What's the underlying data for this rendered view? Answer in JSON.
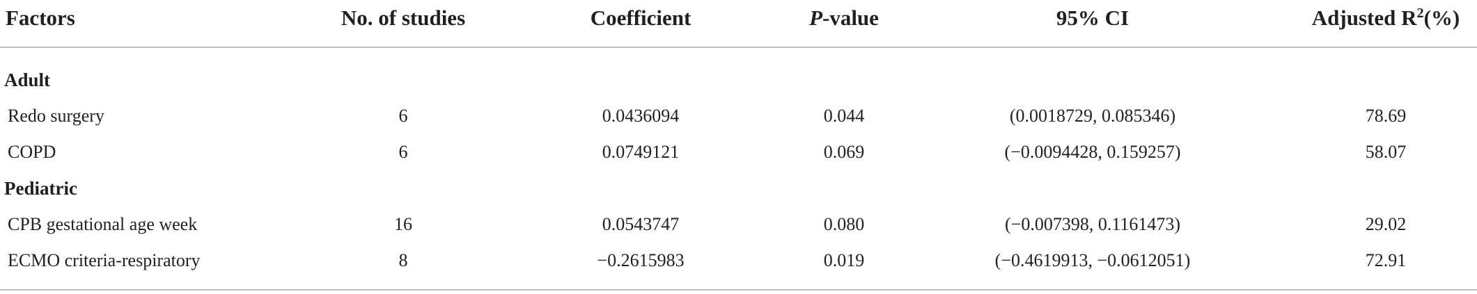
{
  "table": {
    "columns": [
      {
        "text": "Factors"
      },
      {
        "text": "No. of studies"
      },
      {
        "text": "Coefficient"
      },
      {
        "italic": "P",
        "text": "-value"
      },
      {
        "text": "95% CI"
      },
      {
        "text": "Adjusted R",
        "sup": "2",
        "after": "(%)"
      }
    ],
    "groups": [
      {
        "label": "Adult",
        "rows": [
          [
            "Redo surgery",
            "6",
            "0.0436094",
            "0.044",
            "(0.0018729, 0.085346)",
            "78.69"
          ],
          [
            "COPD",
            "6",
            "0.0749121",
            "0.069",
            "(−0.0094428, 0.159257)",
            "58.07"
          ]
        ]
      },
      {
        "label": "Pediatric",
        "rows": [
          [
            "CPB gestational age week",
            "16",
            "0.0543747",
            "0.080",
            "(−0.007398, 0.1161473)",
            "29.02"
          ],
          [
            "ECMO criteria-respiratory",
            "8",
            "−0.2615983",
            "0.019",
            "(−0.4619913, −0.0612051)",
            "72.91"
          ]
        ]
      }
    ]
  }
}
